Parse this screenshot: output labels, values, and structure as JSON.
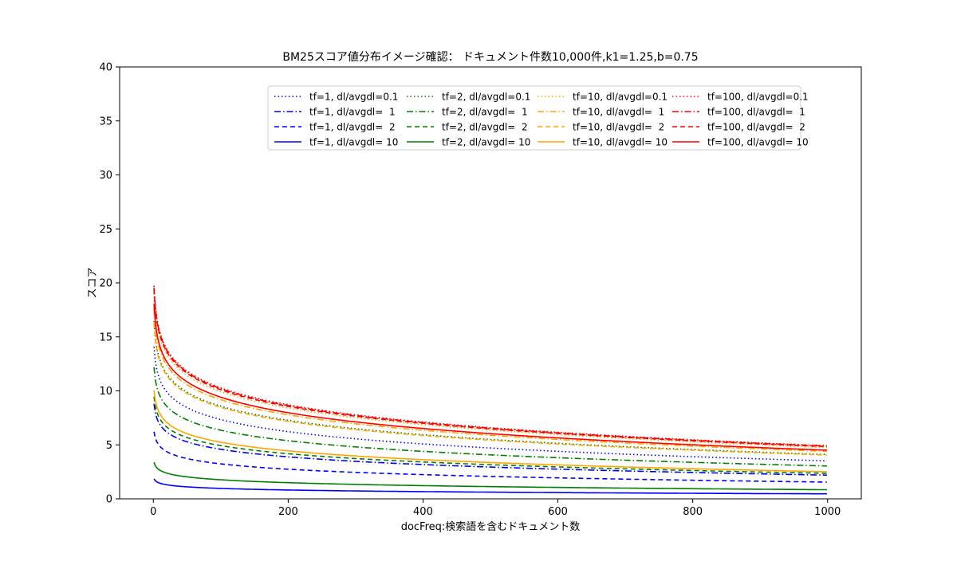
{
  "chart_data": {
    "type": "line",
    "title": "BM25スコア値分布イメージ確認： ドキュメント件数10,000件,k1=1.25,b=0.75",
    "xlabel": "docFreq:検索語を含むドキュメント数",
    "ylabel": "スコア",
    "xlim": [
      -50,
      1050
    ],
    "ylim": [
      0,
      40
    ],
    "xticks": [
      "0",
      "200",
      "400",
      "600",
      "800",
      "1000"
    ],
    "yticks": [
      "0",
      "5",
      "10",
      "15",
      "20",
      "25",
      "30",
      "35",
      "40"
    ],
    "grid": false,
    "legend_position": "top-right",
    "N": 10000,
    "k1": 1.25,
    "b": 0.75,
    "x_range": [
      1,
      1000
    ],
    "colors": {
      "tf1": "#0000ff",
      "tf2": "#008000",
      "tf10": "#ffa500",
      "tf100": "#ff0000",
      "axis": "#000000"
    },
    "series": [
      {
        "name": "tf=1, dl/avgdl=0.1",
        "tf": 1,
        "dl_ratio": 0.1,
        "color": "#0000ff",
        "style": "dotted"
      },
      {
        "name": "tf=1, dl/avgdl=  1",
        "tf": 1,
        "dl_ratio": 1,
        "color": "#0000ff",
        "style": "dashdot"
      },
      {
        "name": "tf=1, dl/avgdl=  2",
        "tf": 1,
        "dl_ratio": 2,
        "color": "#0000ff",
        "style": "dashed"
      },
      {
        "name": "tf=1, dl/avgdl= 10",
        "tf": 1,
        "dl_ratio": 10,
        "color": "#0000ff",
        "style": "solid"
      },
      {
        "name": "tf=2, dl/avgdl=0.1",
        "tf": 2,
        "dl_ratio": 0.1,
        "color": "#008000",
        "style": "dotted"
      },
      {
        "name": "tf=2, dl/avgdl=  1",
        "tf": 2,
        "dl_ratio": 1,
        "color": "#008000",
        "style": "dashdot"
      },
      {
        "name": "tf=2, dl/avgdl=  2",
        "tf": 2,
        "dl_ratio": 2,
        "color": "#008000",
        "style": "dashed"
      },
      {
        "name": "tf=2, dl/avgdl= 10",
        "tf": 2,
        "dl_ratio": 10,
        "color": "#008000",
        "style": "solid"
      },
      {
        "name": "tf=10, dl/avgdl=0.1",
        "tf": 10,
        "dl_ratio": 0.1,
        "color": "#ffa500",
        "style": "dotted"
      },
      {
        "name": "tf=10, dl/avgdl=  1",
        "tf": 10,
        "dl_ratio": 1,
        "color": "#ffa500",
        "style": "dashdot"
      },
      {
        "name": "tf=10, dl/avgdl=  2",
        "tf": 10,
        "dl_ratio": 2,
        "color": "#ffa500",
        "style": "dashed"
      },
      {
        "name": "tf=10, dl/avgdl= 10",
        "tf": 10,
        "dl_ratio": 10,
        "color": "#ffa500",
        "style": "solid"
      },
      {
        "name": "tf=100, dl/avgdl=0.1",
        "tf": 100,
        "dl_ratio": 0.1,
        "color": "#ff0000",
        "style": "dotted"
      },
      {
        "name": "tf=100, dl/avgdl=  1",
        "tf": 100,
        "dl_ratio": 1,
        "color": "#ff0000",
        "style": "dashdot"
      },
      {
        "name": "tf=100, dl/avgdl=  2",
        "tf": 100,
        "dl_ratio": 2,
        "color": "#ff0000",
        "style": "dashed"
      },
      {
        "name": "tf=100, dl/avgdl= 10",
        "tf": 100,
        "dl_ratio": 10,
        "color": "#ff0000",
        "style": "solid"
      }
    ]
  }
}
